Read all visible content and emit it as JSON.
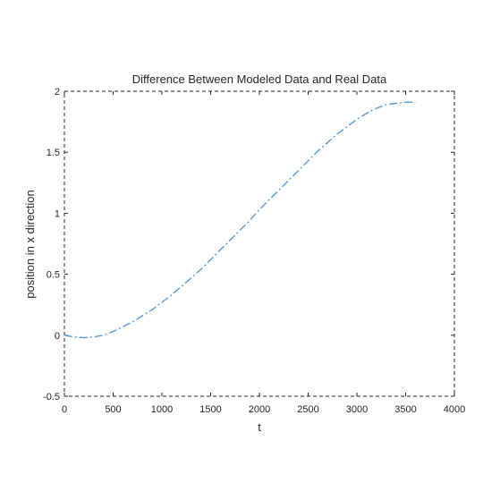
{
  "chart_data": {
    "type": "line",
    "title": "Difference Between Modeled Data and Real Data",
    "xlabel": "t",
    "ylabel": "position in x direction",
    "xlim": [
      0,
      4000
    ],
    "ylim": [
      -0.5,
      2
    ],
    "xticks": [
      0,
      500,
      1000,
      1500,
      2000,
      2500,
      3000,
      3500,
      4000
    ],
    "yticks": [
      -0.5,
      0,
      0.5,
      1,
      1.5,
      2
    ],
    "xtick_labels": [
      "0",
      "500",
      "1000",
      "1500",
      "2000",
      "2500",
      "3000",
      "3500",
      "4000"
    ],
    "ytick_labels": [
      "-0.5",
      "0",
      "0.5",
      "1",
      "1.5",
      "2"
    ],
    "grid": false,
    "box_style": "dashed",
    "colors": {
      "series": "#5b9bd5",
      "axes": "#262626"
    },
    "series": [
      {
        "x": [
          0,
          100,
          200,
          300,
          400,
          500,
          600,
          700,
          800,
          900,
          1000,
          1100,
          1200,
          1300,
          1400,
          1500,
          1600,
          1700,
          1800,
          1900,
          2000,
          2100,
          2200,
          2300,
          2400,
          2500,
          2600,
          2700,
          2800,
          2900,
          3000,
          3100,
          3200,
          3300,
          3400,
          3500,
          3600
        ],
        "y": [
          0,
          -0.015,
          -0.02,
          -0.015,
          0.0,
          0.03,
          0.07,
          0.11,
          0.16,
          0.21,
          0.27,
          0.33,
          0.4,
          0.47,
          0.54,
          0.62,
          0.7,
          0.78,
          0.86,
          0.94,
          1.03,
          1.11,
          1.19,
          1.27,
          1.35,
          1.43,
          1.51,
          1.58,
          1.65,
          1.71,
          1.77,
          1.82,
          1.86,
          1.89,
          1.9,
          1.91,
          1.91
        ]
      }
    ]
  }
}
